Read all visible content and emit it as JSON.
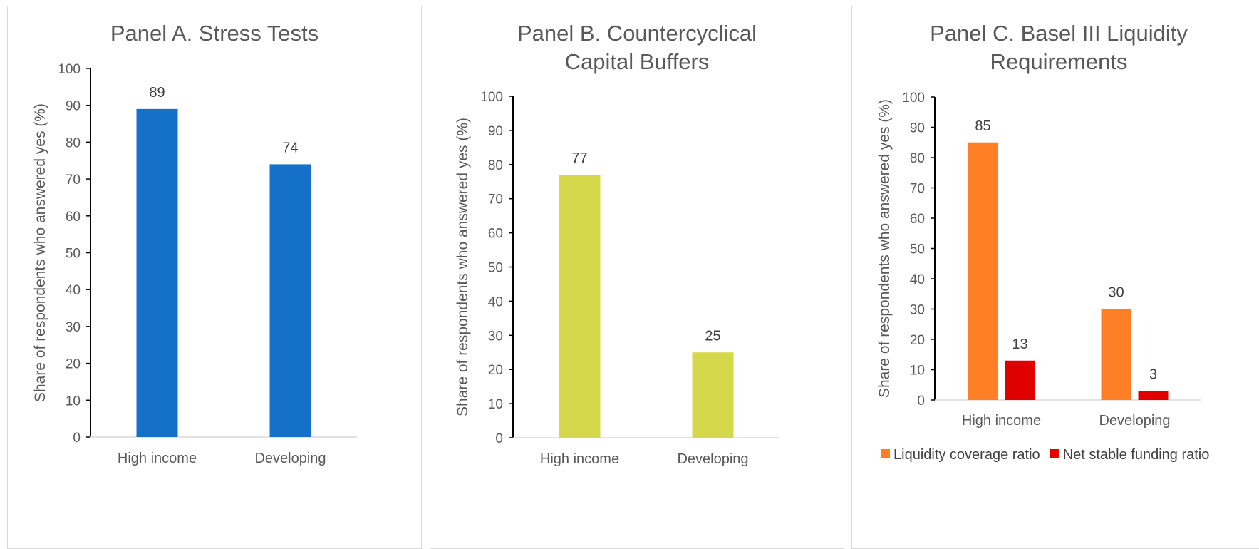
{
  "chart_data": [
    {
      "type": "bar",
      "title": "Panel A. Stress Tests",
      "ylabel": "Share of respondents who answered yes (%)",
      "categories": [
        "High income",
        "Developing"
      ],
      "series": [
        {
          "values": [
            89,
            74
          ],
          "color": "#1570c8"
        }
      ],
      "ylim": [
        0,
        100
      ],
      "yticks": [
        0,
        10,
        20,
        30,
        40,
        50,
        60,
        70,
        80,
        90,
        100
      ],
      "legend": "none"
    },
    {
      "type": "bar",
      "title": "Panel B. Countercyclical Capital Buffers",
      "ylabel": "Share of respondents who answered yes (%)",
      "categories": [
        "High income",
        "Developing"
      ],
      "series": [
        {
          "values": [
            77,
            25
          ],
          "color": "#d4d84a"
        }
      ],
      "ylim": [
        0,
        100
      ],
      "yticks": [
        0,
        10,
        20,
        30,
        40,
        50,
        60,
        70,
        80,
        90,
        100
      ],
      "legend": "none"
    },
    {
      "type": "bar",
      "title": "Panel C. Basel III Liquidity Requirements",
      "ylabel": "Share of respondents who answered yes (%)",
      "categories": [
        "High income",
        "Developing"
      ],
      "series": [
        {
          "name": "Liquidity coverage ratio",
          "values": [
            85,
            30
          ],
          "color": "#ff7f27"
        },
        {
          "name": "Net stable funding ratio",
          "values": [
            13,
            3
          ],
          "color": "#e00000"
        }
      ],
      "ylim": [
        0,
        100
      ],
      "yticks": [
        0,
        10,
        20,
        30,
        40,
        50,
        60,
        70,
        80,
        90,
        100
      ],
      "legend": "bottom"
    }
  ]
}
